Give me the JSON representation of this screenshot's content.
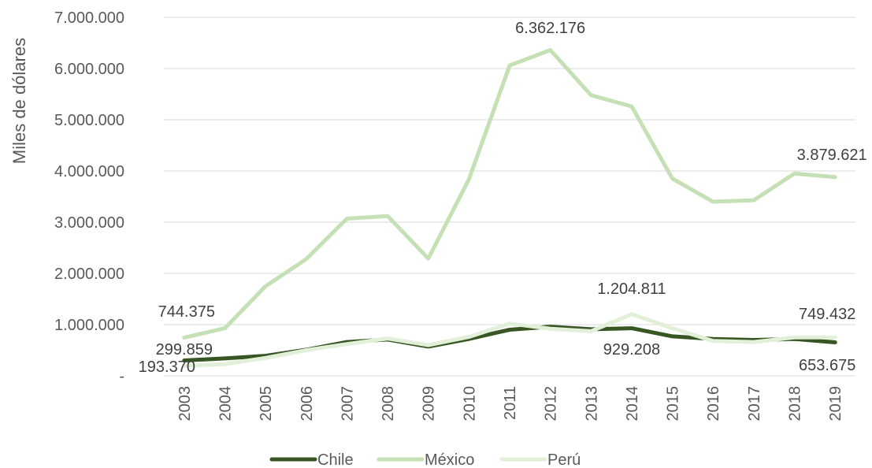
{
  "chart_data": {
    "type": "line",
    "ylabel": "Miles de dólares",
    "ylim": [
      0,
      7000000
    ],
    "yticks": [
      {
        "value": 0,
        "label": "-"
      },
      {
        "value": 1000000,
        "label": "1.000.000"
      },
      {
        "value": 2000000,
        "label": "2.000.000"
      },
      {
        "value": 3000000,
        "label": "3.000.000"
      },
      {
        "value": 4000000,
        "label": "4.000.000"
      },
      {
        "value": 5000000,
        "label": "5.000.000"
      },
      {
        "value": 6000000,
        "label": "6.000.000"
      },
      {
        "value": 7000000,
        "label": "7.000.000"
      }
    ],
    "grid": true,
    "legend_position": "bottom",
    "x": [
      "2003",
      "2004",
      "2005",
      "2006",
      "2007",
      "2008",
      "2009",
      "2010",
      "2011",
      "2012",
      "2013",
      "2014",
      "2015",
      "2016",
      "2017",
      "2018",
      "2019"
    ],
    "series": [
      {
        "name": "Chile",
        "color": "#375623",
        "values": [
          299859,
          340000,
          390000,
          510000,
          660000,
          710000,
          570000,
          720000,
          900000,
          960000,
          910000,
          929208,
          770000,
          720000,
          700000,
          720000,
          653675
        ]
      },
      {
        "name": "México",
        "color": "#c5e0b4",
        "values": [
          744375,
          930000,
          1750000,
          2280000,
          3070000,
          3120000,
          2290000,
          3840000,
          6060000,
          6362176,
          5480000,
          5260000,
          3850000,
          3400000,
          3430000,
          3950000,
          3879621
        ]
      },
      {
        "name": "Perú",
        "color": "#e2f0d9",
        "values": [
          193370,
          230000,
          350000,
          500000,
          620000,
          730000,
          600000,
          760000,
          1020000,
          920000,
          870000,
          1204811,
          930000,
          680000,
          660000,
          750000,
          749432
        ]
      }
    ],
    "annotations": [
      {
        "series": "Chile",
        "x": "2003",
        "label": "299.859"
      },
      {
        "series": "Chile",
        "x": "2014",
        "label": "929.208"
      },
      {
        "series": "Chile",
        "x": "2019",
        "label": "653.675"
      },
      {
        "series": "México",
        "x": "2003",
        "label": "744.375"
      },
      {
        "series": "México",
        "x": "2012",
        "label": "6.362.176"
      },
      {
        "series": "México",
        "x": "2019",
        "label": "3.879.621"
      },
      {
        "series": "Perú",
        "x": "2003",
        "label": "193.370"
      },
      {
        "series": "Perú",
        "x": "2014",
        "label": "1.204.811"
      },
      {
        "series": "Perú",
        "x": "2019",
        "label": "749.432"
      }
    ]
  }
}
